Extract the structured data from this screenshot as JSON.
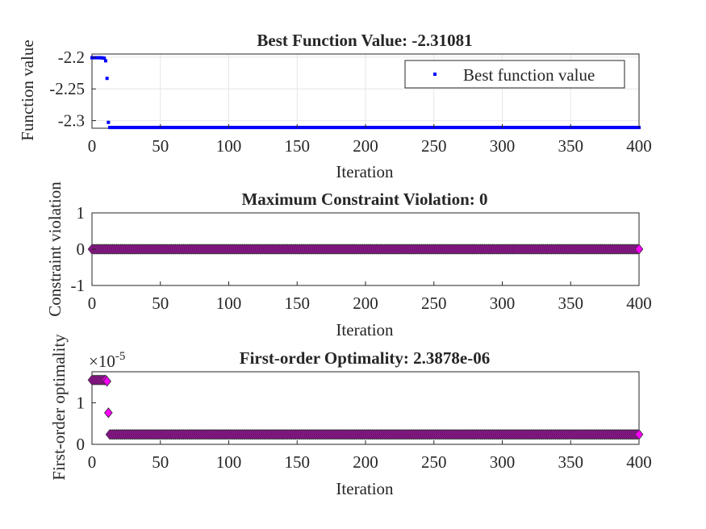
{
  "chart_data": [
    {
      "type": "scatter",
      "title": "Best Function Value: -2.31081",
      "xlabel": "Iteration",
      "ylabel": "Function value",
      "xlim": [
        0,
        400
      ],
      "ylim": [
        -2.312,
        -2.195
      ],
      "xticks": [
        "0",
        "50",
        "100",
        "150",
        "200",
        "250",
        "300",
        "350",
        "400"
      ],
      "xtick_values": [
        0,
        50,
        100,
        150,
        200,
        250,
        300,
        350,
        400
      ],
      "yticks": [
        "-2.2",
        "-2.25",
        "-2.3"
      ],
      "ytick_values": [
        -2.2,
        -2.25,
        -2.3
      ],
      "grid": true,
      "legend": "top-right",
      "marker": "point",
      "color": "#0000ff",
      "series": [
        {
          "name": "Best function value",
          "points": [
            [
              0,
              -2.2008
            ],
            [
              1,
              -2.2008
            ],
            [
              2,
              -2.2008
            ],
            [
              3,
              -2.2008
            ],
            [
              4,
              -2.2008
            ],
            [
              5,
              -2.2008
            ],
            [
              6,
              -2.2009
            ],
            [
              7,
              -2.2009
            ],
            [
              8,
              -2.2012
            ],
            [
              9,
              -2.2016
            ],
            [
              10,
              -2.2057
            ],
            [
              11,
              -2.2334
            ],
            [
              12,
              -2.3028
            ],
            {
              "from": 13,
              "to": 400,
              "value": -2.31081
            }
          ]
        }
      ]
    },
    {
      "type": "scatter",
      "title": "Maximum Constraint Violation: 0",
      "xlabel": "Iteration",
      "ylabel": "Constraint violation",
      "xlim": [
        0,
        400
      ],
      "ylim": [
        -1,
        1
      ],
      "xticks": [
        "0",
        "50",
        "100",
        "150",
        "200",
        "250",
        "300",
        "350",
        "400"
      ],
      "xtick_values": [
        0,
        50,
        100,
        150,
        200,
        250,
        300,
        350,
        400
      ],
      "yticks": [
        "1",
        "0",
        "-1"
      ],
      "ytick_values": [
        1,
        0,
        -1
      ],
      "grid": false,
      "marker": "diamond",
      "color": "#ff00ff",
      "series": [
        {
          "points": [
            {
              "from": 0,
              "to": 400,
              "value": 0
            }
          ]
        }
      ]
    },
    {
      "type": "scatter",
      "title": "First-order Optimality: 2.3878e-06",
      "xlabel": "Iteration",
      "ylabel": "First-order optimality",
      "exponent_label": "×10",
      "exponent_power": "-5",
      "xlim": [
        0,
        400
      ],
      "ylim": [
        0,
        1.75
      ],
      "xticks": [
        "0",
        "50",
        "100",
        "150",
        "200",
        "250",
        "300",
        "350",
        "400"
      ],
      "xtick_values": [
        0,
        50,
        100,
        150,
        200,
        250,
        300,
        350,
        400
      ],
      "yticks": [
        "1",
        "0"
      ],
      "ytick_values": [
        1,
        0
      ],
      "grid": false,
      "marker": "diamond",
      "color": "#ff00ff",
      "series": [
        {
          "points": [
            [
              0,
              1.55
            ],
            [
              1,
              1.55
            ],
            [
              2,
              1.55
            ],
            [
              3,
              1.55
            ],
            [
              4,
              1.55
            ],
            [
              5,
              1.55
            ],
            [
              6,
              1.55
            ],
            [
              7,
              1.55
            ],
            [
              8,
              1.55
            ],
            [
              9,
              1.55
            ],
            [
              10,
              1.55
            ],
            [
              11,
              1.52
            ],
            [
              12,
              0.76
            ],
            {
              "from": 13,
              "to": 400,
              "value": 0.23878
            }
          ]
        }
      ]
    }
  ]
}
